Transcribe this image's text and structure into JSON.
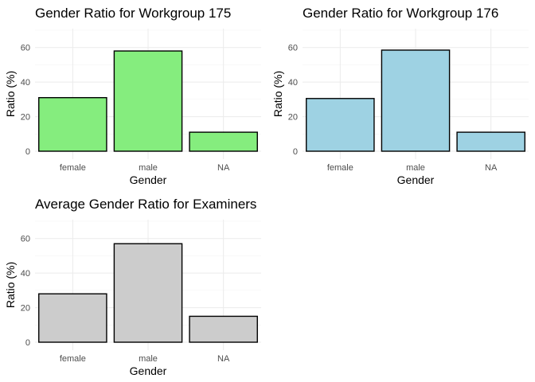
{
  "chart_data": [
    {
      "type": "bar",
      "title": "Gender Ratio for Workgroup 175",
      "xlabel": "Gender",
      "ylabel": "Ratio (%)",
      "categories": [
        "female",
        "male",
        "NA"
      ],
      "values": [
        31,
        58,
        11
      ],
      "ylim": [
        0,
        70
      ],
      "yticks": [
        0,
        20,
        40,
        60
      ],
      "bar_color": "#85ED7E",
      "grid": true
    },
    {
      "type": "bar",
      "title": "Gender Ratio for Workgroup 176",
      "xlabel": "Gender",
      "ylabel": "Ratio (%)",
      "categories": [
        "female",
        "male",
        "NA"
      ],
      "values": [
        30.5,
        58.5,
        11
      ],
      "ylim": [
        0,
        70
      ],
      "yticks": [
        0,
        20,
        40,
        60
      ],
      "bar_color": "#9ED2E3",
      "grid": true
    },
    {
      "type": "bar",
      "title": "Average Gender Ratio for Examiners",
      "xlabel": "Gender",
      "ylabel": "Ratio (%)",
      "categories": [
        "female",
        "male",
        "NA"
      ],
      "values": [
        28,
        57,
        15
      ],
      "ylim": [
        0,
        70
      ],
      "yticks": [
        0,
        20,
        40,
        60
      ],
      "bar_color": "#CCCCCC",
      "grid": true
    }
  ]
}
